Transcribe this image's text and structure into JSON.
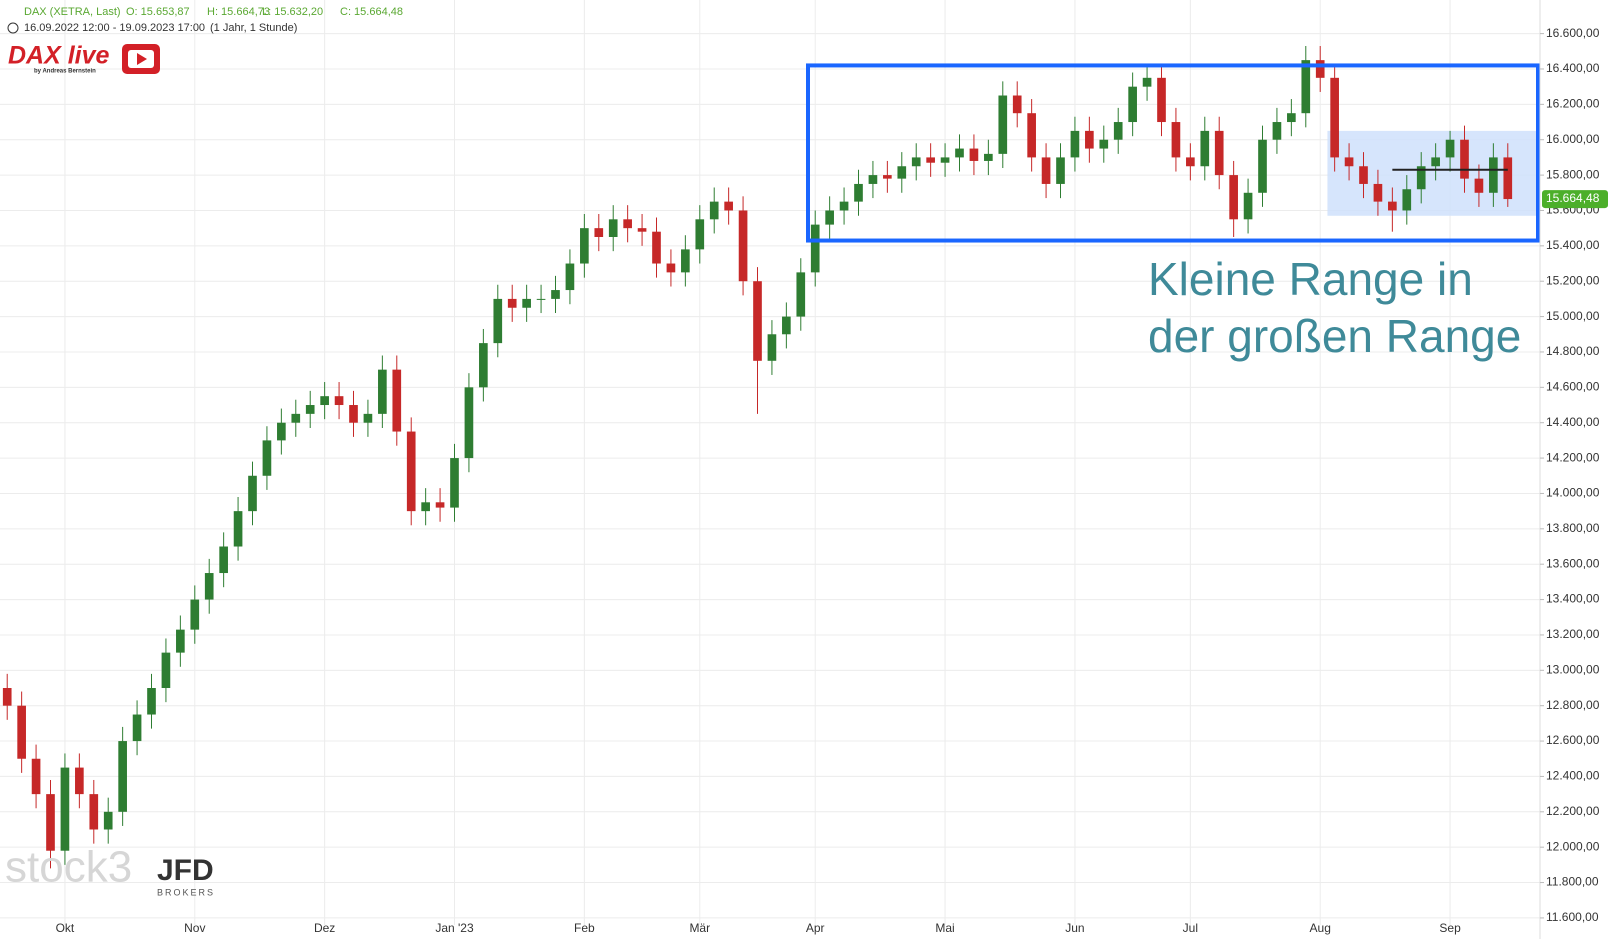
{
  "chart_data": {
    "type": "candlestick",
    "title": "DAX (XETRA, Last)",
    "quote": [
      "O: 15.653,87",
      "H: 15.664,73",
      "L: 15.632,20",
      "C: 15.664,48"
    ],
    "subtitle": "16.09.2022 12:00 - 19.09.2023 17:00",
    "period": "(1 Jahr, 1 Stunde)",
    "logo": "DAX live",
    "logo_byline": "by Andreas Bernstein",
    "watermark": "stock3",
    "broker": "JFD",
    "broker_sub": "BROKERS",
    "annotation": [
      "Kleine Range in",
      "der großen Range"
    ],
    "up_color": "#2e7d32",
    "down_color": "#c62828",
    "grid": true,
    "ylim": [
      11560,
      16790
    ],
    "yticks": [
      {
        "value": 11600,
        "label": "11.600,00"
      },
      {
        "value": 11800,
        "label": "11.800,00"
      },
      {
        "value": 12000,
        "label": "12.000,00"
      },
      {
        "value": 12200,
        "label": "12.200,00"
      },
      {
        "value": 12400,
        "label": "12.400,00"
      },
      {
        "value": 12600,
        "label": "12.600,00"
      },
      {
        "value": 12800,
        "label": "12.800,00"
      },
      {
        "value": 13000,
        "label": "13.000,00"
      },
      {
        "value": 13200,
        "label": "13.200,00"
      },
      {
        "value": 13400,
        "label": "13.400,00"
      },
      {
        "value": 13600,
        "label": "13.600,00"
      },
      {
        "value": 13800,
        "label": "13.800,00"
      },
      {
        "value": 14000,
        "label": "14.000,00"
      },
      {
        "value": 14200,
        "label": "14.200,00"
      },
      {
        "value": 14400,
        "label": "14.400,00"
      },
      {
        "value": 14600,
        "label": "14.600,00"
      },
      {
        "value": 14800,
        "label": "14.800,00"
      },
      {
        "value": 15000,
        "label": "15.000,00"
      },
      {
        "value": 15200,
        "label": "15.200,00"
      },
      {
        "value": 15400,
        "label": "15.400,00"
      },
      {
        "value": 15600,
        "label": "15.600,00"
      },
      {
        "value": 15800,
        "label": "15.800,00"
      },
      {
        "value": 16000,
        "label": "16.000,00"
      },
      {
        "value": 16200,
        "label": "16.200,00"
      },
      {
        "value": 16400,
        "label": "16.400,00"
      },
      {
        "value": 16600,
        "label": "16.600,00"
      }
    ],
    "categories": [
      null,
      null,
      null,
      null,
      "Okt",
      null,
      null,
      null,
      null,
      null,
      null,
      null,
      null,
      "Nov",
      null,
      null,
      null,
      null,
      null,
      null,
      null,
      null,
      "Dez",
      null,
      null,
      null,
      null,
      null,
      null,
      null,
      null,
      "Jan '23",
      null,
      null,
      null,
      null,
      null,
      null,
      null,
      null,
      "Feb",
      null,
      null,
      null,
      null,
      null,
      null,
      null,
      "Mär",
      null,
      null,
      null,
      null,
      null,
      null,
      null,
      "Apr",
      null,
      null,
      null,
      null,
      null,
      null,
      null,
      null,
      "Mai",
      null,
      null,
      null,
      null,
      null,
      null,
      null,
      null,
      "Jun",
      null,
      null,
      null,
      null,
      null,
      null,
      null,
      "Jul",
      null,
      null,
      null,
      null,
      null,
      null,
      null,
      null,
      "Aug",
      null,
      null,
      null,
      null,
      null,
      null,
      null,
      null,
      "Sep",
      null,
      null,
      null,
      null
    ],
    "open": [
      12900,
      12800,
      12500,
      12300,
      11980,
      12450,
      12300,
      12100,
      12200,
      12600,
      12750,
      12900,
      13100,
      13230,
      13400,
      13550,
      13700,
      13900,
      14100,
      14300,
      14400,
      14450,
      14500,
      14550,
      14500,
      14400,
      14450,
      14700,
      14350,
      13900,
      13950,
      13920,
      14200,
      14600,
      14850,
      15100,
      15050,
      15100,
      15100,
      15150,
      15300,
      15500,
      15450,
      15550,
      15500,
      15480,
      15300,
      15250,
      15380,
      15550,
      15650,
      15600,
      15200,
      14750,
      14900,
      15000,
      15250,
      15520,
      15600,
      15650,
      15750,
      15800,
      15780,
      15850,
      15900,
      15870,
      15900,
      15950,
      15880,
      15920,
      16250,
      16150,
      15900,
      15750,
      15900,
      16050,
      15950,
      16000,
      16100,
      16300,
      16350,
      16100,
      15900,
      15850,
      16050,
      15800,
      15550,
      15700,
      16000,
      16100,
      16150,
      16450,
      16350,
      15900,
      15850,
      15750,
      15650,
      15600,
      15720,
      15850,
      15900,
      16000,
      15780,
      15700,
      15900
    ],
    "high": [
      12980,
      12880,
      12580,
      12380,
      12530,
      12530,
      12380,
      12280,
      12680,
      12830,
      12980,
      13180,
      13310,
      13480,
      13630,
      13780,
      13980,
      14180,
      14380,
      14480,
      14530,
      14580,
      14630,
      14630,
      14580,
      14530,
      14780,
      14780,
      14430,
      14030,
      14030,
      14280,
      14680,
      14930,
      15180,
      15180,
      15180,
      15180,
      15230,
      15380,
      15580,
      15580,
      15630,
      15630,
      15580,
      15560,
      15380,
      15460,
      15630,
      15730,
      15730,
      15680,
      15280,
      14980,
      15080,
      15330,
      15600,
      15680,
      15730,
      15830,
      15880,
      15880,
      15930,
      15980,
      15980,
      15980,
      16030,
      16030,
      16000,
      16330,
      16330,
      16230,
      15980,
      15980,
      16130,
      16130,
      16080,
      16180,
      16380,
      16420,
      16430,
      16180,
      15980,
      16130,
      16130,
      15880,
      15780,
      16080,
      16180,
      16230,
      16530,
      16530,
      16430,
      15980,
      15930,
      15830,
      15730,
      15800,
      15930,
      15980,
      16050,
      16080,
      15860,
      15980,
      15980
    ],
    "low": [
      12720,
      12420,
      12220,
      11880,
      11900,
      12220,
      12020,
      12020,
      12120,
      12520,
      12670,
      12820,
      13020,
      13150,
      13320,
      13470,
      13620,
      13820,
      14020,
      14220,
      14320,
      14370,
      14420,
      14420,
      14320,
      14320,
      14370,
      14270,
      13820,
      13820,
      13840,
      13840,
      14120,
      14520,
      14770,
      14970,
      14970,
      15020,
      15020,
      15070,
      15220,
      15370,
      15370,
      15420,
      15400,
      15220,
      15170,
      15170,
      15300,
      15470,
      15520,
      15120,
      14450,
      14670,
      14820,
      14920,
      15170,
      15440,
      15520,
      15570,
      15670,
      15700,
      15700,
      15770,
      15790,
      15790,
      15820,
      15800,
      15800,
      15840,
      16070,
      15820,
      15670,
      15670,
      15820,
      15870,
      15870,
      15920,
      16020,
      16220,
      16020,
      15820,
      15770,
      15770,
      15720,
      15450,
      15470,
      15620,
      15920,
      16020,
      16070,
      16270,
      15820,
      15770,
      15670,
      15570,
      15480,
      15520,
      15640,
      15770,
      15820,
      15700,
      15620,
      15620,
      15620
    ],
    "close": [
      12800,
      12500,
      12300,
      11980,
      12450,
      12300,
      12100,
      12200,
      12600,
      12750,
      12900,
      13100,
      13230,
      13400,
      13550,
      13700,
      13900,
      14100,
      14300,
      14400,
      14450,
      14500,
      14550,
      14500,
      14400,
      14450,
      14700,
      14350,
      13900,
      13950,
      13920,
      14200,
      14600,
      14850,
      15100,
      15050,
      15100,
      15100,
      15150,
      15300,
      15500,
      15450,
      15550,
      15500,
      15480,
      15300,
      15250,
      15380,
      15550,
      15650,
      15600,
      15200,
      14750,
      14900,
      15000,
      15250,
      15520,
      15600,
      15650,
      15750,
      15800,
      15780,
      15850,
      15900,
      15870,
      15900,
      15950,
      15880,
      15920,
      16250,
      16150,
      15900,
      15750,
      15900,
      16050,
      15950,
      16000,
      16100,
      16300,
      16350,
      16100,
      15900,
      15850,
      16050,
      15800,
      15550,
      15700,
      16000,
      16100,
      16150,
      16450,
      16350,
      15900,
      15850,
      15750,
      15650,
      15600,
      15720,
      15850,
      15900,
      16000,
      15780,
      15700,
      15900,
      15664.48
    ],
    "last_price": {
      "value": 15664.48,
      "label": "15.664,48",
      "color": "#4caf2a"
    },
    "ranges": [
      {
        "start_index": 55.5,
        "low": 15430,
        "high": 16420,
        "color": "#1a66ff"
      },
      {
        "start_index": 91.5,
        "low": 15570,
        "high": 16050,
        "color": "#cfe0fb"
      }
    ],
    "level": {
      "value": 15830,
      "start_index": 96,
      "end_index": 104
    }
  }
}
